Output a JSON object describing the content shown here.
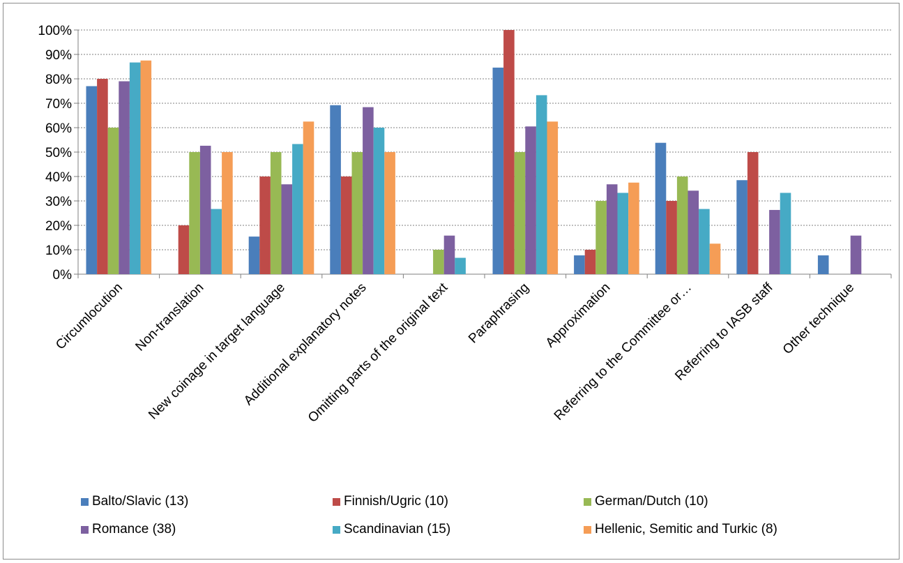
{
  "chart_data": {
    "type": "bar",
    "categories": [
      "Circumlocution",
      "Non-translation",
      "New coinage in target language",
      "Additional explanatory notes",
      "Omitting parts of the original text",
      "Paraphrasing",
      "Approximation",
      "Referring to the Committee or…",
      "Referring to  IASB staff",
      "Other technique"
    ],
    "series": [
      {
        "name": "Balto/Slavic (13)",
        "color": "#4a7ebb",
        "values": [
          77,
          0,
          15.4,
          69.2,
          0,
          84.6,
          7.7,
          53.8,
          38.5,
          7.7
        ]
      },
      {
        "name": "Finnish/Ugric (10)",
        "color": "#be4b48",
        "values": [
          80,
          20,
          40,
          40,
          0,
          100,
          10,
          30,
          50,
          0
        ]
      },
      {
        "name": "German/Dutch (10)",
        "color": "#98b954",
        "values": [
          60,
          50,
          50,
          50,
          10,
          50,
          30,
          40,
          0,
          0
        ]
      },
      {
        "name": "Romance (38)",
        "color": "#7d60a0",
        "values": [
          79,
          52.6,
          36.8,
          68.4,
          15.8,
          60.5,
          36.8,
          34.2,
          26.3,
          15.8
        ]
      },
      {
        "name": "Scandinavian (15)",
        "color": "#46aac5",
        "values": [
          86.7,
          26.7,
          53.3,
          60,
          6.7,
          73.3,
          33.3,
          26.7,
          33.3,
          0
        ]
      },
      {
        "name": "Hellenic, Semitic and Turkic  (8)",
        "color": "#f59d56",
        "values": [
          87.5,
          50,
          62.5,
          50,
          0,
          62.5,
          37.5,
          12.5,
          0,
          0
        ]
      }
    ],
    "y_ticks": [
      "0%",
      "10%",
      "20%",
      "30%",
      "40%",
      "50%",
      "60%",
      "70%",
      "80%",
      "90%",
      "100%"
    ],
    "ylim": [
      0,
      100
    ],
    "grid": true,
    "legend_position": "bottom"
  }
}
